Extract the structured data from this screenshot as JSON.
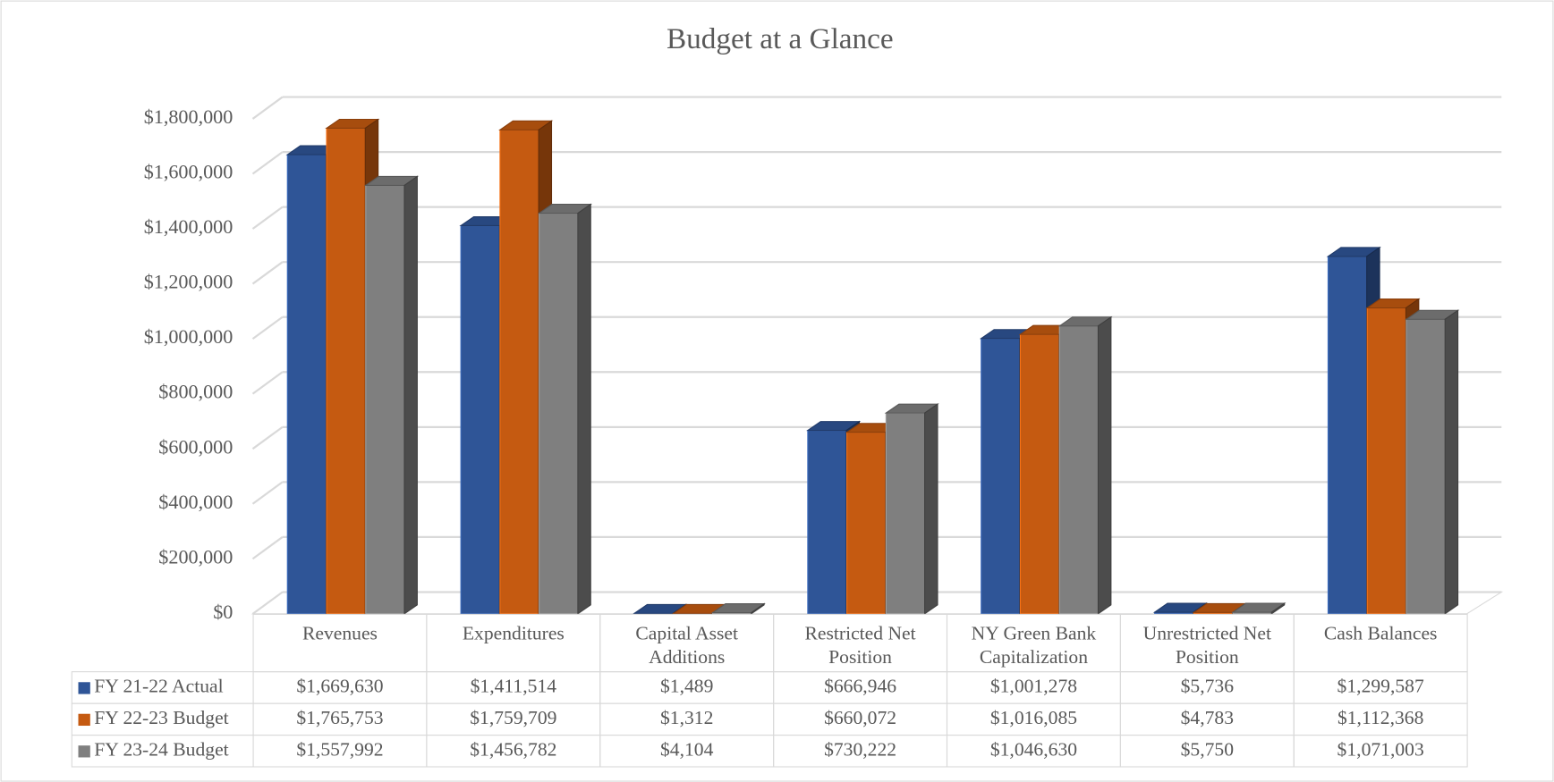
{
  "chart_data": {
    "type": "bar3d",
    "title": "Budget at a Glance",
    "categories": [
      "Revenues",
      "Expenditures",
      "Capital Asset Additions",
      "Restricted Net Position",
      "NY Green Bank Capitalization",
      "Unrestricted Net Position",
      "Cash Balances"
    ],
    "series": [
      {
        "name": "FY 21-22 Actual",
        "color": "#2F5597",
        "values": [
          1669630,
          1411514,
          1489,
          666946,
          1001278,
          5736,
          1299587
        ],
        "value_labels": [
          "$1,669,630",
          "$1,411,514",
          "$1,489",
          "$666,946",
          "$1,001,278",
          "$5,736",
          "$1,299,587"
        ]
      },
      {
        "name": "FY 22-23 Budget",
        "color": "#C55A11",
        "values": [
          1765753,
          1759709,
          1312,
          660072,
          1016085,
          4783,
          1112368
        ],
        "value_labels": [
          "$1,765,753",
          "$1,759,709",
          "$1,312",
          "$660,072",
          "$1,016,085",
          "$4,783",
          "$1,112,368"
        ]
      },
      {
        "name": "FY 23-24 Budget",
        "color": "#7F7F7F",
        "values": [
          1557992,
          1456782,
          4104,
          730222,
          1046630,
          5750,
          1071003
        ],
        "value_labels": [
          "$1,557,992",
          "$1,456,782",
          "$4,104",
          "$730,222",
          "$1,046,630",
          "$5,750",
          "$1,071,003"
        ]
      }
    ],
    "ylim": [
      0,
      1800000
    ],
    "yticks": [
      {
        "value": 0,
        "label": "$0"
      },
      {
        "value": 200000,
        "label": "$200,000"
      },
      {
        "value": 400000,
        "label": "$400,000"
      },
      {
        "value": 600000,
        "label": "$600,000"
      },
      {
        "value": 800000,
        "label": "$800,000"
      },
      {
        "value": 1000000,
        "label": "$1,000,000"
      },
      {
        "value": 1200000,
        "label": "$1,200,000"
      },
      {
        "value": 1400000,
        "label": "$1,400,000"
      },
      {
        "value": 1600000,
        "label": "$1,600,000"
      },
      {
        "value": 1800000,
        "label": "$1,800,000"
      }
    ],
    "grid": true
  }
}
